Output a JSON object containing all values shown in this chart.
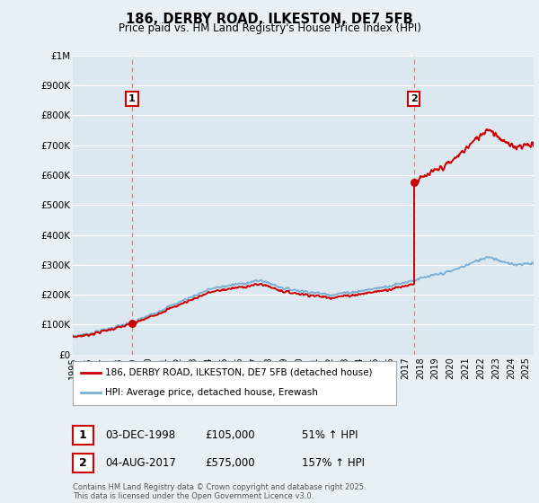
{
  "title": "186, DERBY ROAD, ILKESTON, DE7 5FB",
  "subtitle": "Price paid vs. HM Land Registry's House Price Index (HPI)",
  "background_color": "#e8f0f5",
  "plot_bg_color": "#dce8f0",
  "ylim": [
    0,
    1000000
  ],
  "yticks": [
    0,
    100000,
    200000,
    300000,
    400000,
    500000,
    600000,
    700000,
    800000,
    900000,
    1000000
  ],
  "ytick_labels": [
    "£0",
    "£100K",
    "£200K",
    "£300K",
    "£400K",
    "£500K",
    "£600K",
    "£700K",
    "£800K",
    "£900K",
    "£1M"
  ],
  "xlim_start": 1995.0,
  "xlim_end": 2025.5,
  "sale1_year": 1998.92,
  "sale1_price": 105000,
  "sale1_label": "1",
  "sale1_date": "03-DEC-1998",
  "sale1_hpi_pct": "51% ↑ HPI",
  "sale2_year": 2017.58,
  "sale2_price": 575000,
  "sale2_label": "2",
  "sale2_date": "04-AUG-2017",
  "sale2_hpi_pct": "157% ↑ HPI",
  "sale_color": "#cc0000",
  "hpi_color": "#7aafd4",
  "vline_color": "#e88080",
  "label1_text": "186, DERBY ROAD, ILKESTON, DE7 5FB (detached house)",
  "label2_text": "HPI: Average price, detached house, Erewash",
  "footer": "Contains HM Land Registry data © Crown copyright and database right 2025.\nThis data is licensed under the Open Government Licence v3.0."
}
